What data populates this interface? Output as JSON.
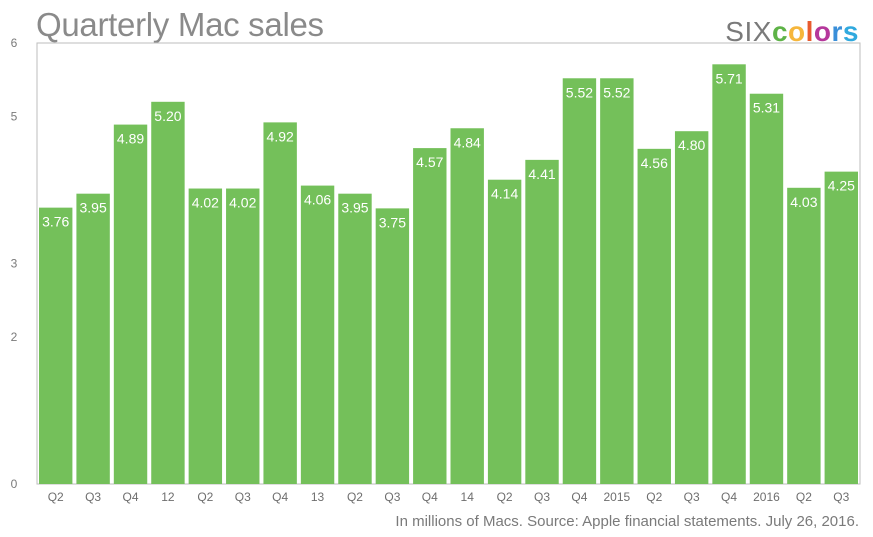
{
  "chart_data": {
    "type": "bar",
    "title": "Quarterly Mac sales",
    "xlabel": "",
    "ylabel": "",
    "ylim": [
      0,
      6
    ],
    "yticks": [
      0,
      2,
      3,
      5,
      6
    ],
    "grid": false,
    "categories": [
      "Q2",
      "Q3",
      "Q4",
      "12",
      "Q2",
      "Q3",
      "Q4",
      "13",
      "Q2",
      "Q3",
      "Q4",
      "14",
      "Q2",
      "Q3",
      "Q4",
      "2015",
      "Q2",
      "Q3",
      "Q4",
      "2016",
      "Q2",
      "Q3"
    ],
    "series": [
      {
        "name": "",
        "values": [
          3.76,
          3.95,
          4.89,
          5.2,
          4.02,
          4.02,
          4.92,
          4.06,
          3.95,
          3.75,
          4.57,
          4.84,
          4.14,
          4.41,
          5.52,
          5.52,
          4.56,
          4.8,
          5.71,
          5.31,
          4.03,
          4.25
        ],
        "labels": [
          "3.76",
          "3.95",
          "4.89",
          "5.20",
          "4.02",
          "4.02",
          "4.92",
          "4.06",
          "3.95",
          "3.75",
          "4.57",
          "4.84",
          "4.14",
          "4.41",
          "5.52",
          "5.52",
          "4.56",
          "4.80",
          "5.71",
          "5.31",
          "4.03",
          "4.25"
        ]
      }
    ],
    "bar_color": "#74c05a",
    "note": "In millions of Macs. Source: Apple financial statements. July 26, 2016."
  },
  "logo": {
    "six": "SIX",
    "colors_letters": [
      "c",
      "o",
      "l",
      "o",
      "r",
      "s"
    ],
    "colors_palette": [
      "#5eb347",
      "#f6b63b",
      "#e85b2e",
      "#b5379b",
      "#3a8fd9",
      "#30a9de"
    ]
  }
}
